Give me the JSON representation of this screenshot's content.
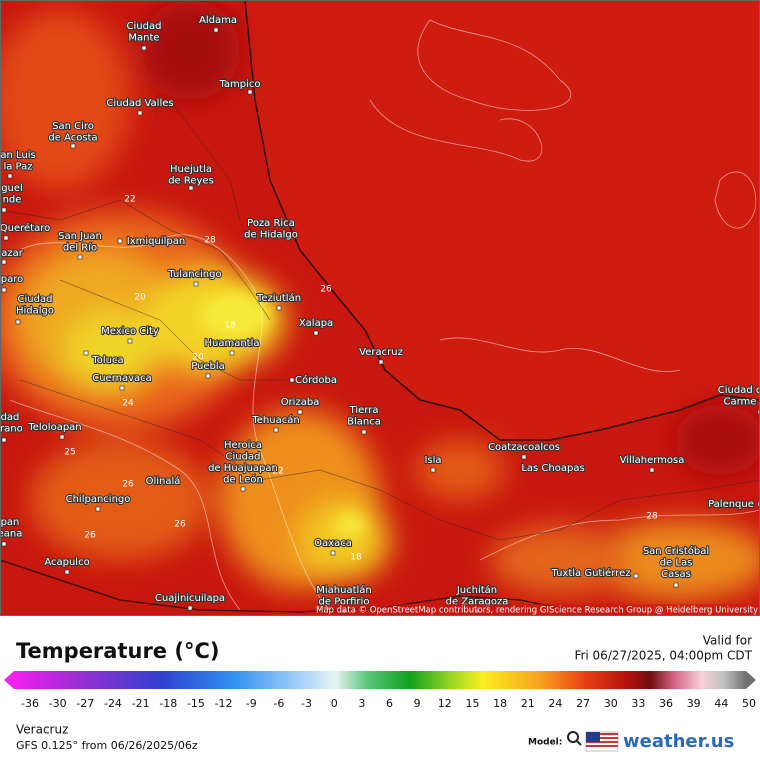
{
  "map": {
    "cities": [
      [
        "Aldama"
      ],
      [
        "Ciudad",
        "Mante"
      ],
      [
        "Tampico"
      ],
      [
        "Ciudad Valles"
      ],
      [
        "San Ciro",
        "de Acosta"
      ],
      [
        "an Luis",
        "la Paz"
      ],
      [
        "Huejutla",
        "de Reyes"
      ],
      [
        "guel",
        "nde"
      ],
      [
        "Querétaro"
      ],
      [
        "San Juan",
        "del Río"
      ],
      [
        "Ixmiquilpan"
      ],
      [
        "azar"
      ],
      [
        "Poza Rica",
        "de Hidalgo"
      ],
      [
        "Tulancingo"
      ],
      [
        "paro"
      ],
      [
        "Teziutlán"
      ],
      [
        "Ciudad",
        "Hidalgo"
      ],
      [
        "Xalapa"
      ],
      [
        "Mexico City"
      ],
      [
        "Huamantla"
      ],
      [
        "Veracruz"
      ],
      [
        "Toluca"
      ],
      [
        "Puebla"
      ],
      [
        "Cuernavaca"
      ],
      [
        "Córdoba"
      ],
      [
        "Orizaba"
      ],
      [
        "Tierra",
        "Blanca"
      ],
      [
        "Ciudad d",
        "Carme"
      ],
      [
        "dad",
        "irano"
      ],
      [
        "Teloloapan"
      ],
      [
        "Tehuacán"
      ],
      [
        "Heroica",
        "Ciudad",
        "de Huajuapan",
        "de León"
      ],
      [
        "Coatzacoalcos"
      ],
      [
        "Isla"
      ],
      [
        "Las Choapas"
      ],
      [
        "Villahermosa"
      ],
      [
        "Olinalá"
      ],
      [
        "Chilpancingo"
      ],
      [
        "Palenque"
      ],
      [
        "pan",
        "eana"
      ],
      [
        "Oaxaca"
      ],
      [
        "San Cristóbal",
        "de Las",
        "Casas"
      ],
      [
        "Acapulco"
      ],
      [
        "Tuxtla Gutiérrez"
      ],
      [
        "Cuajinicuilapa"
      ],
      [
        "Miahuatlán",
        "de Porfirio"
      ],
      [
        "Juchitán",
        "de Zaragoza"
      ]
    ],
    "contour_labels": [
      "22",
      "20",
      "18",
      "20",
      "26",
      "24",
      "25",
      "26",
      "26",
      "26",
      "28",
      "18",
      "22",
      "28"
    ],
    "attribution": "Map data © OpenStreetMap contributors, rendering GIScience Research Group @ Heidelberg University"
  },
  "legend": {
    "title": "Temperature (°C)",
    "valid_label": "Valid for",
    "valid_time": "Fri 06/27/2025, 04:00pm CDT",
    "ticks": [
      -36,
      -30,
      -27,
      -24,
      -21,
      -18,
      -15,
      -12,
      -9,
      -6,
      -3,
      0,
      3,
      6,
      9,
      12,
      15,
      18,
      21,
      24,
      27,
      30,
      33,
      36,
      39,
      44,
      50
    ]
  },
  "footer": {
    "location": "Veracruz",
    "model_run": "GFS 0.125° from  06/26/2025/06z",
    "model_label": "Model:",
    "brand": "weather.us"
  }
}
